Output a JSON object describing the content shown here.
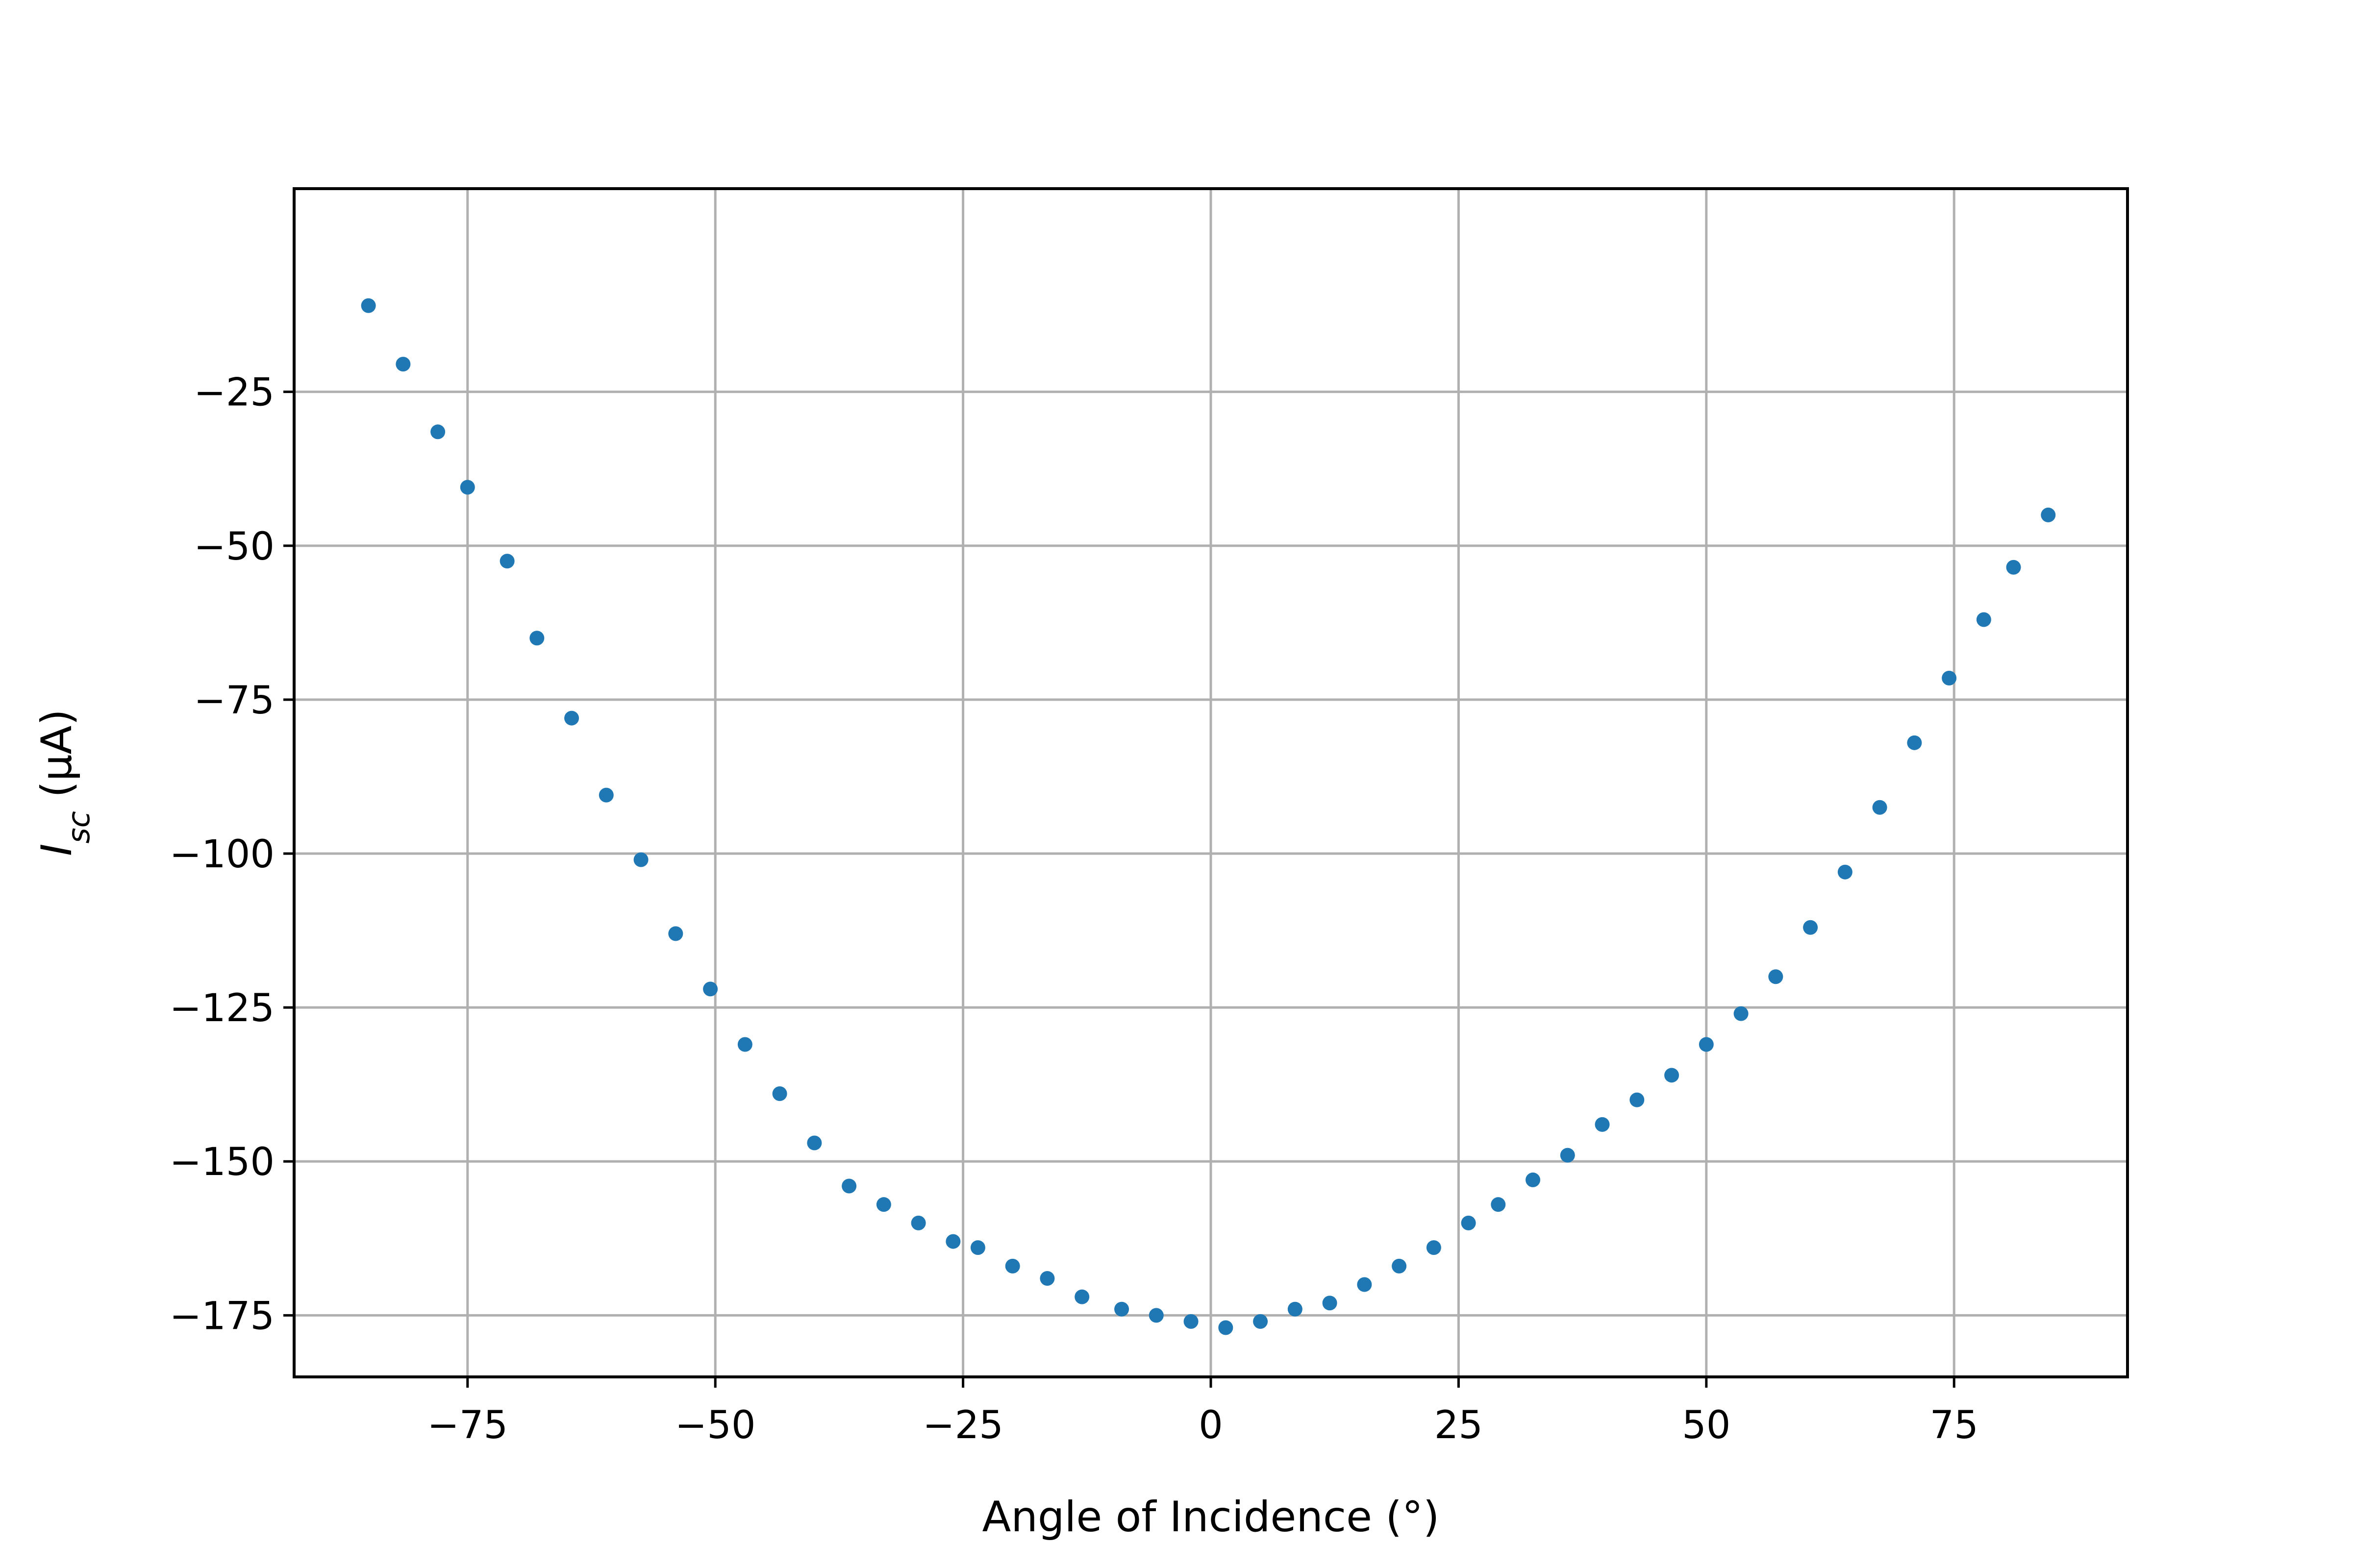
{
  "chart_data": {
    "type": "scatter",
    "title": "",
    "xlabel": "Angle of Incidence (°)",
    "ylabel": "I_sc (μA)",
    "ylabel_parts": {
      "main": "I",
      "sub": "sc",
      "rest": " (μA)"
    },
    "xlim": [
      -92.5,
      92.5
    ],
    "ylim": [
      -185,
      8
    ],
    "grid": true,
    "legend": "none",
    "x_ticks": [
      -75,
      -50,
      -25,
      0,
      25,
      50,
      75
    ],
    "x_tick_labels": [
      "−75",
      "−50",
      "−25",
      "0",
      "25",
      "50",
      "75"
    ],
    "y_ticks": [
      -25,
      -50,
      -75,
      -100,
      -125,
      -150,
      -175
    ],
    "y_tick_labels": [
      "−25",
      "−50",
      "−75",
      "−100",
      "−125",
      "−150",
      "−175"
    ],
    "series": [
      {
        "color": "#1f77b4",
        "points": [
          [
            -85,
            -11
          ],
          [
            -81.5,
            -20.5
          ],
          [
            -78,
            -31.5
          ],
          [
            -75,
            -40.5
          ],
          [
            -71,
            -52.5
          ],
          [
            -68,
            -65
          ],
          [
            -64.5,
            -78
          ],
          [
            -61,
            -90.5
          ],
          [
            -57.5,
            -101
          ],
          [
            -54,
            -113
          ],
          [
            -50.5,
            -122
          ],
          [
            -47,
            -131
          ],
          [
            -43.5,
            -139
          ],
          [
            -40,
            -147
          ],
          [
            -36.5,
            -154
          ],
          [
            -33,
            -157
          ],
          [
            -29.5,
            -160
          ],
          [
            -26,
            -163
          ],
          [
            -23.5,
            -164
          ],
          [
            -20,
            -167
          ],
          [
            -16.5,
            -169
          ],
          [
            -13,
            -172
          ],
          [
            -9,
            -174
          ],
          [
            -5.5,
            -175
          ],
          [
            -2,
            -176
          ],
          [
            1.5,
            -177
          ],
          [
            5,
            -176
          ],
          [
            8.5,
            -174
          ],
          [
            12,
            -173
          ],
          [
            15.5,
            -170
          ],
          [
            19,
            -167
          ],
          [
            22.5,
            -164
          ],
          [
            26,
            -160
          ],
          [
            29,
            -157
          ],
          [
            32.5,
            -153
          ],
          [
            36,
            -149
          ],
          [
            39.5,
            -144
          ],
          [
            43,
            -140
          ],
          [
            46.5,
            -136
          ],
          [
            50,
            -131
          ],
          [
            53.5,
            -126
          ],
          [
            57,
            -120
          ],
          [
            60.5,
            -112
          ],
          [
            64,
            -103
          ],
          [
            67.5,
            -92.5
          ],
          [
            71,
            -82
          ],
          [
            74.5,
            -71.5
          ],
          [
            78,
            -62
          ],
          [
            81,
            -53.5
          ],
          [
            84.5,
            -45
          ]
        ]
      }
    ]
  }
}
